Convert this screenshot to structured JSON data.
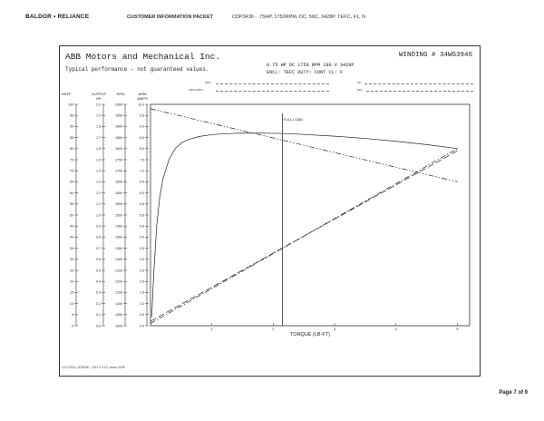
{
  "header": {
    "brand": "BALDOR • RELIANCE",
    "packet_title": "CUSTOMER INFORMATION PACKET",
    "catalog_desc": "CDP3436 - .75HP, 1750RPM, DC, 56C, 3428P, TEFC, F1, N"
  },
  "sheet": {
    "company": "ABB Motors and Mechanical Inc.",
    "typical": "Typical performance - not guaranteed values.",
    "winding": "WINDING # 34WG3946",
    "rating_line1": "0.75 HP  DC  1750 RPM  180 V  3428P",
    "rating_line2": "ENCL: TEFC  DUTY: CONT  CL: F",
    "field_left_1": "RPM",
    "field_left_2": "ARM AMPS",
    "field_right_1": "HP",
    "field_right_2": "EFF",
    "footer_code": "1/17/2024,  3CR00K,  YSH 2.3.19,  Issue 3248",
    "page_number": "Page 7 of 9"
  },
  "chart_data": {
    "type": "line",
    "xlabel": "TORQUE (LB-FT)",
    "xlim": [
      0,
      5.2
    ],
    "x_ticks": [
      1,
      2,
      3,
      4,
      5
    ],
    "annotation": "FULL LOAD",
    "full_load_torque": 2.15,
    "axes": [
      {
        "key": "eff",
        "title": [
          "%EFF"
        ],
        "min": 0,
        "max": 100,
        "step": 5,
        "ticks": [
          "0",
          "5",
          "10",
          "15",
          "20",
          "25",
          "30",
          "35",
          "40",
          "45",
          "50",
          "55",
          "60",
          "65",
          "70",
          "75",
          "80",
          "85",
          "90",
          "95",
          "100"
        ]
      },
      {
        "key": "hp",
        "title": [
          "OUTPUT",
          "HP"
        ],
        "min": 0,
        "max": 2.0,
        "step": 0.1,
        "ticks": [
          "0.0",
          "0.1",
          "0.2",
          "0.3",
          "0.4",
          "0.5",
          "0.6",
          "0.7",
          "0.8",
          "0.9",
          "1.0",
          "1.1",
          "1.2",
          "1.3",
          "1.4",
          "1.5",
          "1.6",
          "1.7",
          "1.8",
          "1.9",
          "2.0"
        ]
      },
      {
        "key": "rpm",
        "title": [
          "RPM"
        ],
        "min": 1000,
        "max": 2000,
        "step": 50,
        "ticks": [
          "1000",
          "1050",
          "1100",
          "1150",
          "1200",
          "1250",
          "1300",
          "1350",
          "1400",
          "1450",
          "1500",
          "1550",
          "1600",
          "1650",
          "1700",
          "1750",
          "1800",
          "1850",
          "1900",
          "1950",
          "2000"
        ]
      },
      {
        "key": "amps",
        "title": [
          "ARM",
          "AMPS"
        ],
        "min": 0,
        "max": 10.0,
        "step": 0.5,
        "ticks": [
          "0.0",
          "0.5",
          "1.0",
          "1.5",
          "2.0",
          "2.5",
          "3.0",
          "3.5",
          "4.0",
          "4.5",
          "5.0",
          "5.5",
          "6.0",
          "6.5",
          "7.0",
          "7.5",
          "8.0",
          "8.5",
          "9.0",
          "9.5",
          "10.0"
        ]
      }
    ],
    "series": [
      {
        "axis": "eff",
        "dash": "",
        "x": [
          0.02,
          0.05,
          0.1,
          0.15,
          0.2,
          0.3,
          0.4,
          0.5,
          0.6,
          0.8,
          1.0,
          1.2,
          1.5,
          1.8,
          2.0,
          2.2,
          2.5,
          3.0,
          3.5,
          4.0,
          4.5,
          5.0
        ],
        "y": [
          4,
          22,
          45,
          58,
          66,
          75,
          80,
          82.5,
          84,
          85.5,
          86.3,
          86.7,
          87,
          87,
          86.9,
          86.8,
          86.4,
          85.6,
          84.6,
          83.3,
          81.8,
          80
        ]
      },
      {
        "axis": "hp",
        "dash": "6 2 1.5 2",
        "x": [
          0,
          5
        ],
        "y": [
          0.02,
          1.6
        ]
      },
      {
        "axis": "rpm",
        "dash": "6 2 1.5 2 1.5 2",
        "x": [
          0,
          5
        ],
        "y": [
          1980,
          1650
        ]
      },
      {
        "axis": "amps",
        "dash": "7 3",
        "x": [
          0,
          5
        ],
        "y": [
          0.2,
          7.9
        ]
      }
    ]
  }
}
